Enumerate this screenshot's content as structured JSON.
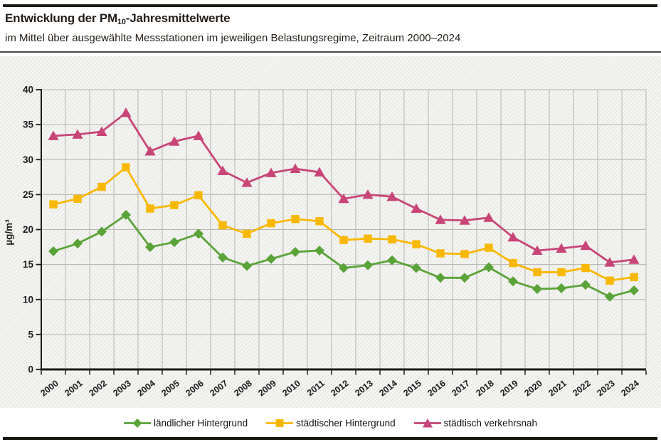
{
  "header": {
    "title_prefix": "Entwicklung der PM",
    "title_sub": "10",
    "title_suffix": "-Jahresmittelwerte",
    "subtitle": "im Mittel über ausgewählte Messstationen im jeweiligen Belastungsregime, Zeitraum 2000–2024"
  },
  "chart_data": {
    "type": "line",
    "title": "Entwicklung der PM10-Jahresmittelwerte",
    "subtitle": "im Mittel über ausgewählte Messstationen im jeweiligen Belastungsregime, Zeitraum 2000–2024",
    "ylabel": "µg/m³",
    "ylim": [
      0,
      40
    ],
    "ytick_step": 5,
    "grid": true,
    "legend_position": "bottom",
    "x": [
      2000,
      2001,
      2002,
      2003,
      2004,
      2005,
      2006,
      2007,
      2008,
      2009,
      2010,
      2011,
      2012,
      2013,
      2014,
      2015,
      2016,
      2017,
      2018,
      2019,
      2020,
      2021,
      2022,
      2023,
      2024
    ],
    "series": [
      {
        "name": "ländlicher Hintergrund",
        "color": "#5aa338",
        "marker": "diamond",
        "values": [
          16.9,
          18.0,
          19.7,
          22.1,
          17.5,
          18.2,
          19.4,
          16.0,
          14.8,
          15.8,
          16.8,
          17.0,
          14.5,
          14.9,
          15.6,
          14.5,
          13.1,
          13.1,
          14.6,
          12.6,
          11.5,
          11.6,
          12.1,
          10.4,
          11.3
        ]
      },
      {
        "name": "städtischer Hintergrund",
        "color": "#f9b800",
        "marker": "square",
        "values": [
          23.6,
          24.4,
          26.1,
          28.9,
          23.0,
          23.5,
          24.9,
          20.6,
          19.4,
          20.9,
          21.5,
          21.2,
          18.5,
          18.7,
          18.6,
          17.9,
          16.6,
          16.5,
          17.4,
          15.2,
          13.9,
          13.9,
          14.5,
          12.7,
          13.2
        ]
      },
      {
        "name": "städtisch verkehrsnah",
        "color": "#c84577",
        "marker": "triangle",
        "values": [
          33.4,
          33.6,
          34.0,
          36.7,
          31.2,
          32.6,
          33.4,
          28.4,
          26.7,
          28.1,
          28.7,
          28.2,
          24.4,
          25.0,
          24.7,
          23.0,
          21.4,
          21.3,
          21.7,
          18.9,
          17.0,
          17.3,
          17.7,
          15.3,
          15.7
        ]
      }
    ]
  }
}
